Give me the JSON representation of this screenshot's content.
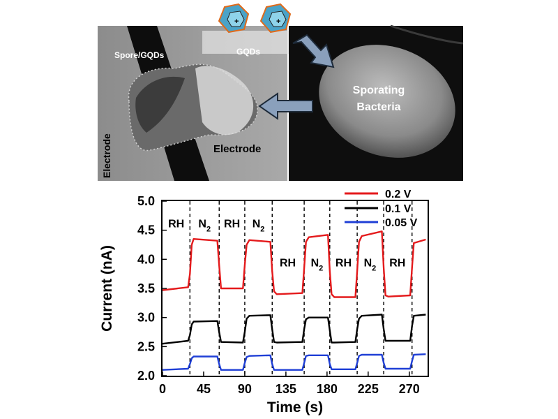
{
  "sem_panel": {
    "left_labels": {
      "spore_gqds": "Spore/GQDs",
      "gqds": "GQDs",
      "electrode_vertical": "Electrode",
      "electrode_horizontal": "Electrode"
    },
    "right_labels": {
      "line1": "Sporating",
      "line2": "Bacteria"
    }
  },
  "chart_data": {
    "type": "line",
    "xlabel": "Time (s)",
    "ylabel": "Current (nA)",
    "xlim": [
      0,
      290
    ],
    "ylim": [
      2.0,
      5.0
    ],
    "xticks": [
      0,
      45,
      90,
      135,
      180,
      225,
      270
    ],
    "yticks": [
      2.0,
      2.5,
      3.0,
      3.5,
      4.0,
      4.5,
      5.0
    ],
    "switch_times": [
      30,
      62,
      90,
      120,
      155,
      183,
      213,
      242,
      273
    ],
    "segment_labels": [
      {
        "text": "RH",
        "x": 15,
        "y": 4.55
      },
      {
        "text": "N",
        "sub": "2",
        "x": 46,
        "y": 4.55
      },
      {
        "text": "RH",
        "x": 76,
        "y": 4.55
      },
      {
        "text": "N",
        "sub": "2",
        "x": 105,
        "y": 4.55
      },
      {
        "text": "RH",
        "x": 137,
        "y": 3.88
      },
      {
        "text": "N",
        "sub": "2",
        "x": 169,
        "y": 3.88
      },
      {
        "text": "RH",
        "x": 198,
        "y": 3.88
      },
      {
        "text": "N",
        "sub": "2",
        "x": 227,
        "y": 3.88
      },
      {
        "text": "RH",
        "x": 257,
        "y": 3.88
      }
    ],
    "legend_position": "top-right",
    "series": [
      {
        "name": "0.2 V",
        "color": "#e41a1c",
        "x": [
          0,
          28,
          30,
          32,
          34,
          60,
          62,
          64,
          88,
          90,
          92,
          95,
          118,
          120,
          122,
          125,
          153,
          155,
          157,
          160,
          181,
          183,
          185,
          188,
          211,
          213,
          215,
          218,
          240,
          242,
          244,
          247,
          271,
          273,
          275,
          288
        ],
        "y": [
          3.47,
          3.52,
          3.75,
          4.25,
          4.35,
          4.32,
          3.9,
          3.5,
          3.5,
          3.9,
          4.25,
          4.33,
          4.3,
          3.8,
          3.45,
          3.4,
          3.42,
          3.85,
          4.3,
          4.38,
          4.42,
          3.8,
          3.4,
          3.35,
          3.35,
          3.8,
          4.3,
          4.4,
          4.48,
          3.85,
          3.38,
          3.36,
          3.38,
          3.85,
          4.28,
          4.34
        ]
      },
      {
        "name": "0.1 V",
        "color": "#000000",
        "x": [
          0,
          28,
          30,
          32,
          34,
          60,
          62,
          64,
          88,
          90,
          92,
          95,
          118,
          120,
          122,
          125,
          153,
          155,
          157,
          160,
          181,
          183,
          185,
          188,
          211,
          213,
          215,
          218,
          240,
          242,
          244,
          247,
          271,
          273,
          275,
          288
        ],
        "y": [
          2.55,
          2.6,
          2.7,
          2.88,
          2.93,
          2.94,
          2.75,
          2.58,
          2.57,
          2.75,
          2.98,
          3.03,
          3.04,
          2.8,
          2.58,
          2.57,
          2.58,
          2.8,
          2.97,
          3.0,
          3.0,
          2.78,
          2.57,
          2.57,
          2.58,
          2.8,
          2.98,
          3.03,
          3.05,
          2.8,
          2.6,
          2.6,
          2.6,
          2.85,
          3.03,
          3.05
        ]
      },
      {
        "name": "0.05 V",
        "color": "#1f3fd6",
        "x": [
          0,
          28,
          30,
          32,
          34,
          60,
          62,
          64,
          88,
          90,
          92,
          95,
          118,
          120,
          122,
          125,
          153,
          155,
          157,
          160,
          181,
          183,
          185,
          188,
          211,
          213,
          215,
          218,
          240,
          242,
          244,
          247,
          271,
          273,
          275,
          288
        ],
        "y": [
          2.1,
          2.12,
          2.2,
          2.3,
          2.33,
          2.33,
          2.2,
          2.1,
          2.1,
          2.22,
          2.32,
          2.34,
          2.35,
          2.2,
          2.1,
          2.1,
          2.1,
          2.22,
          2.34,
          2.35,
          2.35,
          2.2,
          2.11,
          2.11,
          2.11,
          2.22,
          2.34,
          2.36,
          2.36,
          2.22,
          2.12,
          2.12,
          2.12,
          2.25,
          2.36,
          2.37
        ]
      }
    ]
  }
}
